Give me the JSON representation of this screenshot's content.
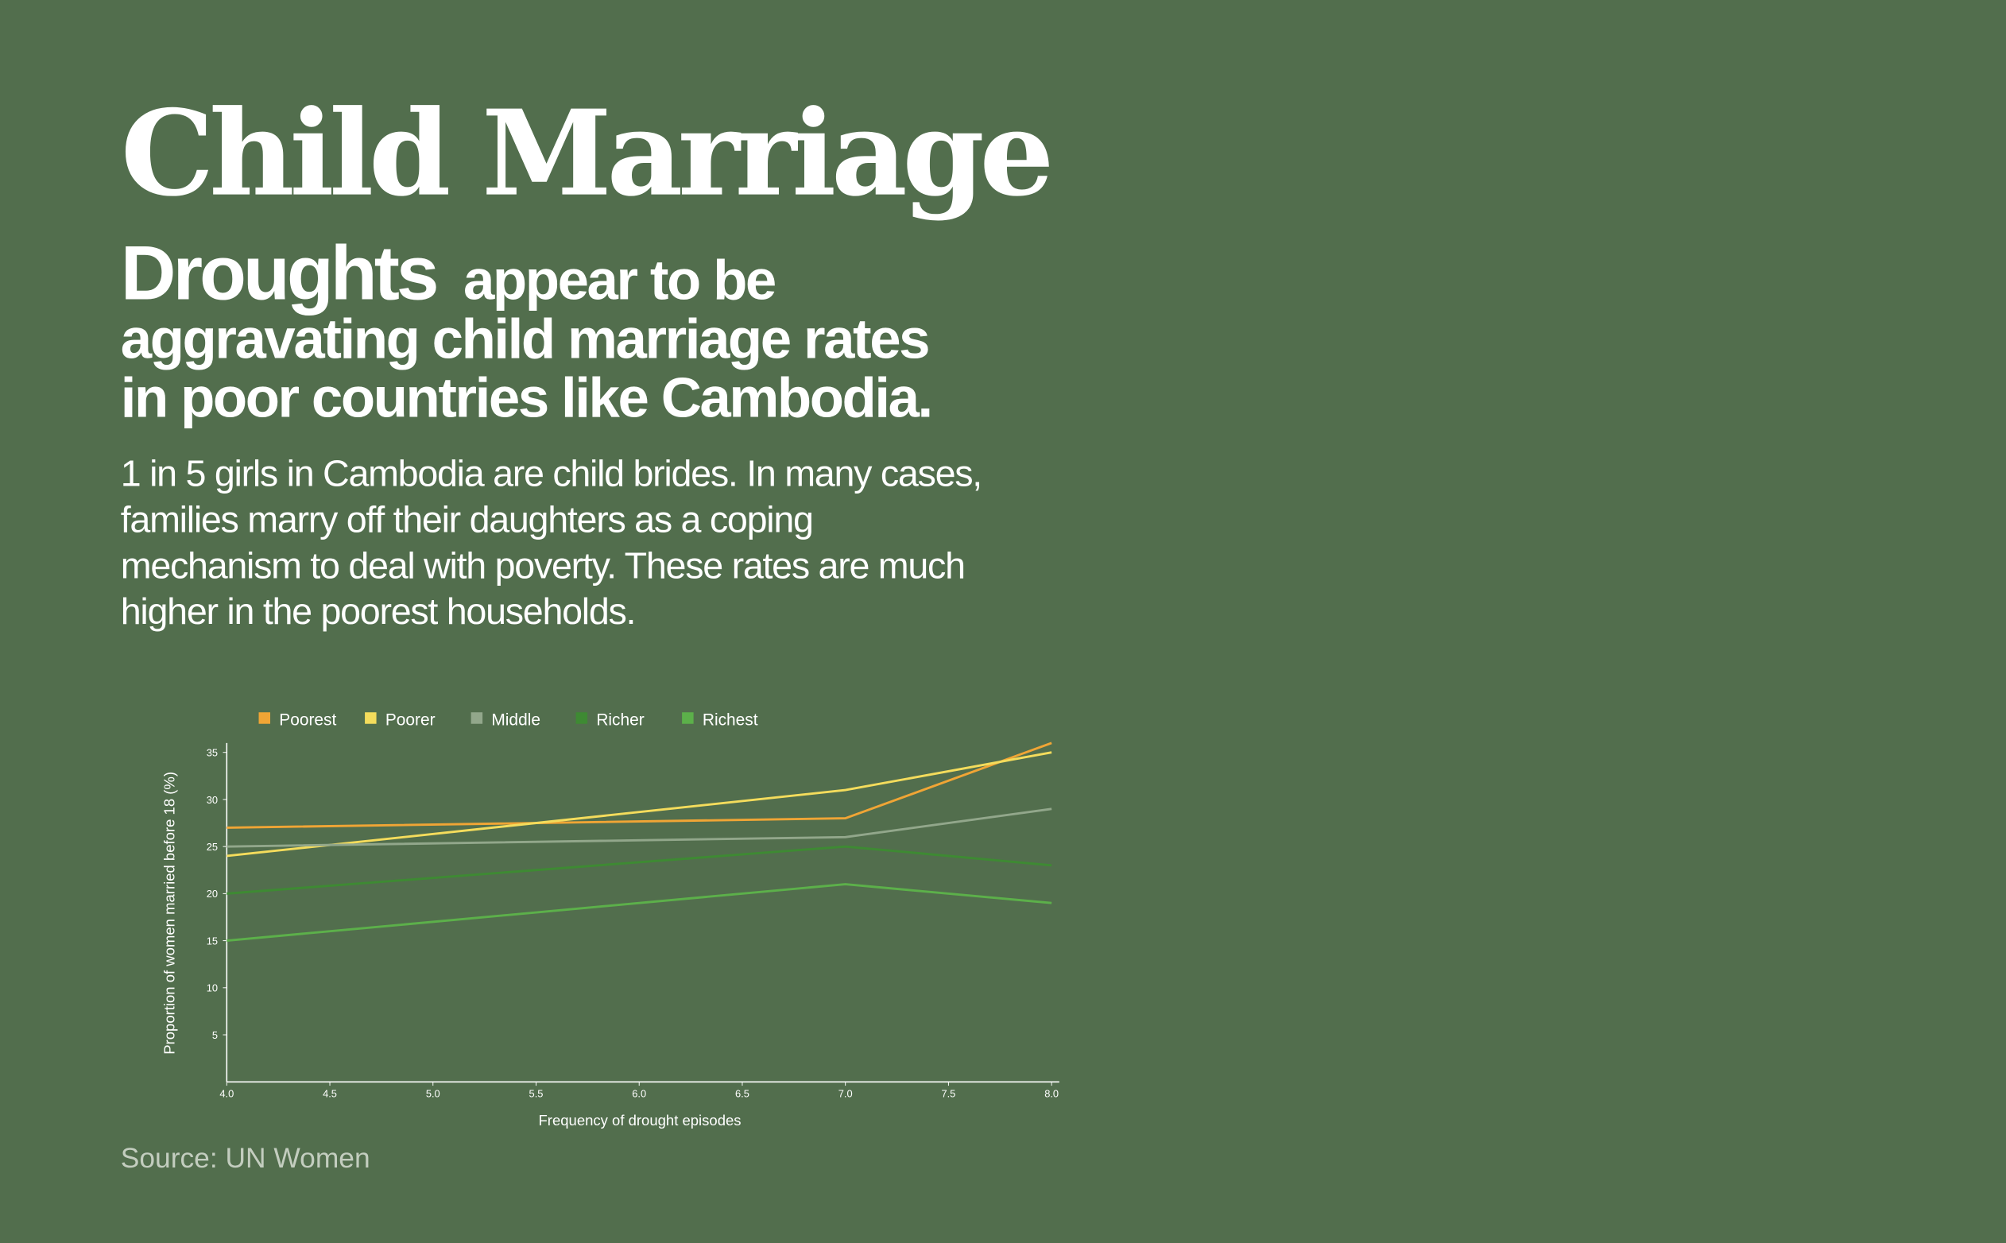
{
  "header": {
    "title": "Child Marriage",
    "subtitle_lead": "Droughts",
    "subtitle_lines": [
      "appear to be",
      "aggravating child marriage rates",
      "in poor countries like Cambodia."
    ],
    "body_lines": [
      "1 in 5 girls in Cambodia are child brides. In many cases,",
      "families marry off their daughters as a coping",
      "mechanism to deal with poverty. These rates are much",
      "higher in the poorest households."
    ]
  },
  "chart_data": {
    "type": "line",
    "x_label": "Frequency of drought episodes",
    "y_label": "Proportion of women married before 18 (%)",
    "x": [
      4,
      7,
      8
    ],
    "series": [
      {
        "name": "Poorest",
        "color": "#f0a535",
        "values": [
          27,
          28,
          36
        ]
      },
      {
        "name": "Poorer",
        "color": "#f4dc5c",
        "values": [
          24,
          31,
          35
        ]
      },
      {
        "name": "Middle",
        "color": "#92a78b",
        "values": [
          25,
          26,
          29
        ]
      },
      {
        "name": "Richer",
        "color": "#3e8a33",
        "values": [
          20,
          25,
          23
        ]
      },
      {
        "name": "Richest",
        "color": "#5cb04a",
        "values": [
          15,
          21,
          19
        ]
      }
    ],
    "xlim": [
      4,
      8
    ],
    "xticks": [
      {
        "value": 4,
        "label": "4.0"
      },
      {
        "value": 4.5,
        "label": "4.5"
      },
      {
        "value": 5,
        "label": "5.0"
      },
      {
        "value": 5.5,
        "label": "5.5"
      },
      {
        "value": 6,
        "label": "6.0"
      },
      {
        "value": 6.5,
        "label": "6.5"
      },
      {
        "value": 7,
        "label": "7.0"
      },
      {
        "value": 7.5,
        "label": "7.5"
      },
      {
        "value": 8,
        "label": "8.0"
      }
    ],
    "ylim": [
      0,
      36
    ],
    "yticks": [
      5,
      10,
      15,
      20,
      25,
      30,
      35
    ],
    "legend": "top-left"
  },
  "source": "Source: UN Women"
}
